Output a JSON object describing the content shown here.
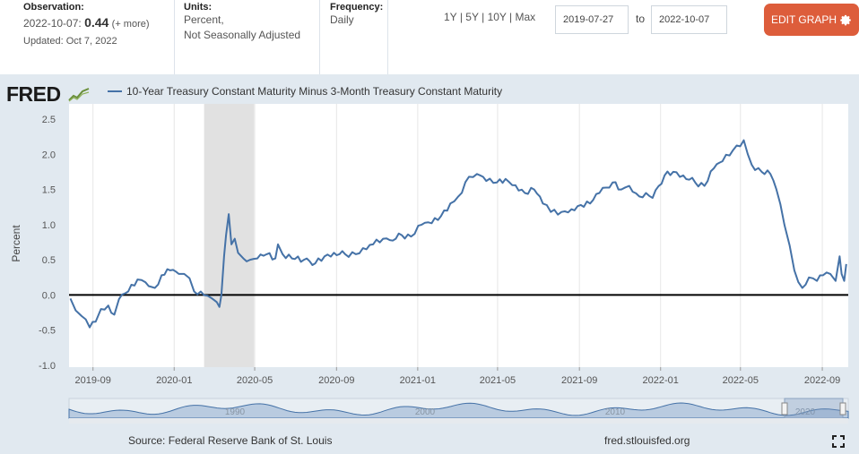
{
  "header": {
    "observation_label": "Observation:",
    "observation_date": "2022-10-07:",
    "observation_value": "0.44",
    "observation_more": "(+ more)",
    "updated": "Updated: Oct 7, 2022",
    "units_label": "Units:",
    "units_value_1": "Percent,",
    "units_value_2": "Not Seasonally Adjusted",
    "frequency_label": "Frequency:",
    "frequency_value": "Daily",
    "range_1y": "1Y",
    "range_5y": "5Y",
    "range_10y": "10Y",
    "range_max": "Max",
    "sep": "|",
    "date_start": "2019-07-27",
    "to_label": "to",
    "date_end": "2022-10-07",
    "edit_button": "EDIT GRAPH",
    "gear_icon": "gear-icon"
  },
  "logo": {
    "text": "FRED"
  },
  "footer": {
    "source": "Source: Federal Reserve Bank of St. Louis",
    "site": "fred.stlouisfed.org"
  },
  "navigator_labels": [
    "1990",
    "2000",
    "2010",
    "2020"
  ],
  "colors": {
    "line": "#4572a7",
    "edit": "#dd5d3b",
    "panel": "#e1e9f0",
    "recession": "#e1e1e1"
  },
  "chart_data": {
    "type": "line",
    "series": [
      {
        "name": "10-Year Treasury Constant Maturity Minus 3-Month Treasury Constant Maturity",
        "points": [
          [
            "2019-07-29",
            -0.05
          ],
          [
            "2019-08-06",
            -0.22
          ],
          [
            "2019-08-15",
            -0.3
          ],
          [
            "2019-08-27",
            -0.46
          ],
          [
            "2019-09-05",
            -0.38
          ],
          [
            "2019-09-13",
            -0.2
          ],
          [
            "2019-09-24",
            -0.15
          ],
          [
            "2019-10-03",
            -0.28
          ],
          [
            "2019-10-10",
            -0.06
          ],
          [
            "2019-10-24",
            0.05
          ],
          [
            "2019-11-07",
            0.22
          ],
          [
            "2019-11-19",
            0.18
          ],
          [
            "2019-12-03",
            0.1
          ],
          [
            "2019-12-13",
            0.28
          ],
          [
            "2019-12-26",
            0.35
          ],
          [
            "2020-01-08",
            0.3
          ],
          [
            "2020-01-16",
            0.3
          ],
          [
            "2020-01-24",
            0.24
          ],
          [
            "2020-01-31",
            0.05
          ],
          [
            "2020-02-10",
            0.05
          ],
          [
            "2020-02-20",
            -0.01
          ],
          [
            "2020-02-27",
            -0.05
          ],
          [
            "2020-03-05",
            -0.1
          ],
          [
            "2020-03-09",
            -0.17
          ],
          [
            "2020-03-12",
            0.0
          ],
          [
            "2020-03-16",
            0.55
          ],
          [
            "2020-03-19",
            0.85
          ],
          [
            "2020-03-23",
            1.15
          ],
          [
            "2020-03-27",
            0.72
          ],
          [
            "2020-04-01",
            0.8
          ],
          [
            "2020-04-06",
            0.6
          ],
          [
            "2020-04-14",
            0.52
          ],
          [
            "2020-04-24",
            0.5
          ],
          [
            "2020-05-05",
            0.52
          ],
          [
            "2020-05-19",
            0.58
          ],
          [
            "2020-06-01",
            0.52
          ],
          [
            "2020-06-05",
            0.72
          ],
          [
            "2020-06-12",
            0.58
          ],
          [
            "2020-06-26",
            0.52
          ],
          [
            "2020-07-14",
            0.5
          ],
          [
            "2020-07-31",
            0.45
          ],
          [
            "2020-08-14",
            0.55
          ],
          [
            "2020-08-28",
            0.6
          ],
          [
            "2020-09-14",
            0.58
          ],
          [
            "2020-09-30",
            0.58
          ],
          [
            "2020-10-16",
            0.65
          ],
          [
            "2020-10-26",
            0.72
          ],
          [
            "2020-11-10",
            0.8
          ],
          [
            "2020-11-20",
            0.78
          ],
          [
            "2020-12-08",
            0.85
          ],
          [
            "2020-12-22",
            0.83
          ],
          [
            "2021-01-07",
            1.0
          ],
          [
            "2021-01-22",
            1.02
          ],
          [
            "2021-02-05",
            1.12
          ],
          [
            "2021-02-19",
            1.3
          ],
          [
            "2021-03-03",
            1.4
          ],
          [
            "2021-03-19",
            1.68
          ],
          [
            "2021-03-31",
            1.72
          ],
          [
            "2021-04-14",
            1.62
          ],
          [
            "2021-04-30",
            1.6
          ],
          [
            "2021-05-13",
            1.65
          ],
          [
            "2021-05-28",
            1.56
          ],
          [
            "2021-06-11",
            1.45
          ],
          [
            "2021-06-25",
            1.5
          ],
          [
            "2021-07-08",
            1.3
          ],
          [
            "2021-07-20",
            1.18
          ],
          [
            "2021-08-05",
            1.18
          ],
          [
            "2021-08-20",
            1.22
          ],
          [
            "2021-09-03",
            1.28
          ],
          [
            "2021-09-17",
            1.3
          ],
          [
            "2021-10-01",
            1.45
          ],
          [
            "2021-10-21",
            1.6
          ],
          [
            "2021-11-03",
            1.5
          ],
          [
            "2021-11-15",
            1.55
          ],
          [
            "2021-11-30",
            1.4
          ],
          [
            "2021-12-10",
            1.45
          ],
          [
            "2021-12-20",
            1.38
          ],
          [
            "2022-01-07",
            1.7
          ],
          [
            "2022-01-20",
            1.75
          ],
          [
            "2022-02-04",
            1.7
          ],
          [
            "2022-02-22",
            1.6
          ],
          [
            "2022-03-08",
            1.55
          ],
          [
            "2022-03-22",
            1.8
          ],
          [
            "2022-04-04",
            1.9
          ],
          [
            "2022-04-20",
            2.06
          ],
          [
            "2022-05-06",
            2.2
          ],
          [
            "2022-05-18",
            1.85
          ],
          [
            "2022-06-02",
            1.75
          ],
          [
            "2022-06-15",
            1.72
          ],
          [
            "2022-06-24",
            1.5
          ],
          [
            "2022-07-06",
            1.0
          ],
          [
            "2022-07-14",
            0.7
          ],
          [
            "2022-07-21",
            0.35
          ],
          [
            "2022-08-02",
            0.1
          ],
          [
            "2022-08-12",
            0.25
          ],
          [
            "2022-08-24",
            0.2
          ],
          [
            "2022-09-02",
            0.28
          ],
          [
            "2022-09-13",
            0.3
          ],
          [
            "2022-09-21",
            0.2
          ],
          [
            "2022-09-27",
            0.55
          ],
          [
            "2022-09-30",
            0.3
          ],
          [
            "2022-10-04",
            0.2
          ],
          [
            "2022-10-07",
            0.44
          ]
        ]
      }
    ],
    "y_range": [
      -1.0,
      2.5
    ],
    "y_ticks": [
      "2.5",
      "2.0",
      "1.5",
      "1.0",
      "0.5",
      "0.0",
      "-0.5",
      "-1.0"
    ],
    "x_ticks": [
      "2019-09",
      "2020-01",
      "2020-05",
      "2020-09",
      "2021-01",
      "2021-05",
      "2021-09",
      "2022-01",
      "2022-05",
      "2022-09"
    ],
    "ylabel": "Percent",
    "recession": [
      "2020-02-15",
      "2020-04-30"
    ],
    "grid": "vertical",
    "legend": "top-left"
  }
}
